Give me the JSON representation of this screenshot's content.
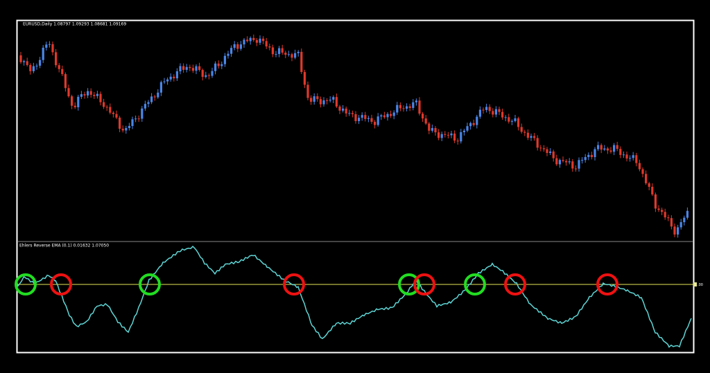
{
  "chart_window": {
    "symbol_label": "EURUSD,Daily  1.08797 1.09293 1.08681 1.09169",
    "indicator_label": "Ehlers Reverse EMA (0.1) 0.01632 1.07050",
    "level_label": ".00"
  }
}
